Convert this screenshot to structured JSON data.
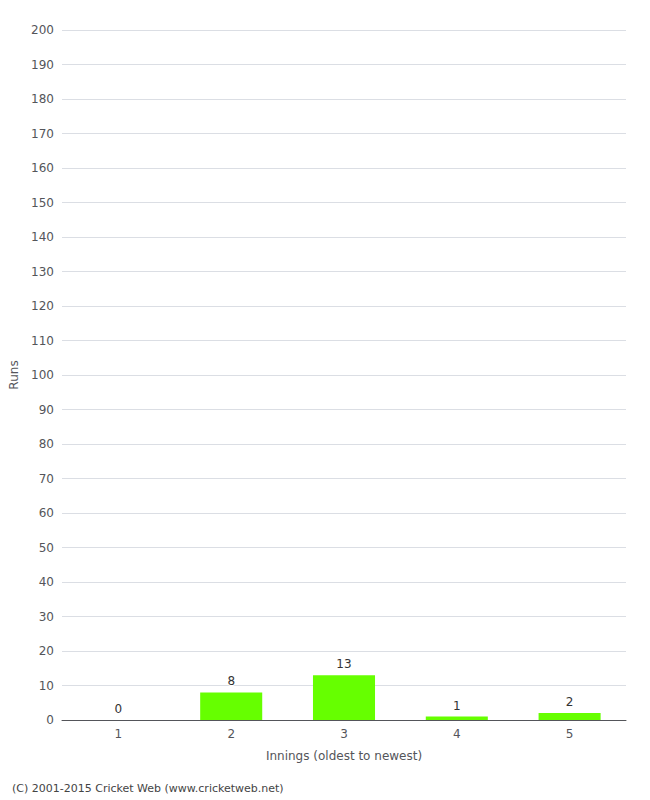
{
  "chart_data": {
    "type": "bar",
    "xlabel": "Innings (oldest to newest)",
    "ylabel": "Runs",
    "categories": [
      1,
      2,
      3,
      4,
      5
    ],
    "values": [
      0,
      8,
      13,
      1,
      2
    ],
    "color": "#66ff00",
    "ylim": [
      0,
      200
    ],
    "yticks": [
      0,
      10,
      20,
      30,
      40,
      50,
      60,
      70,
      80,
      90,
      100,
      110,
      120,
      130,
      140,
      150,
      160,
      170,
      180,
      190,
      200
    ],
    "grid": true,
    "data_labels": true,
    "annotations": [
      "(C) 2001-2015 Cricket Web (www.cricketweb.net)"
    ]
  }
}
